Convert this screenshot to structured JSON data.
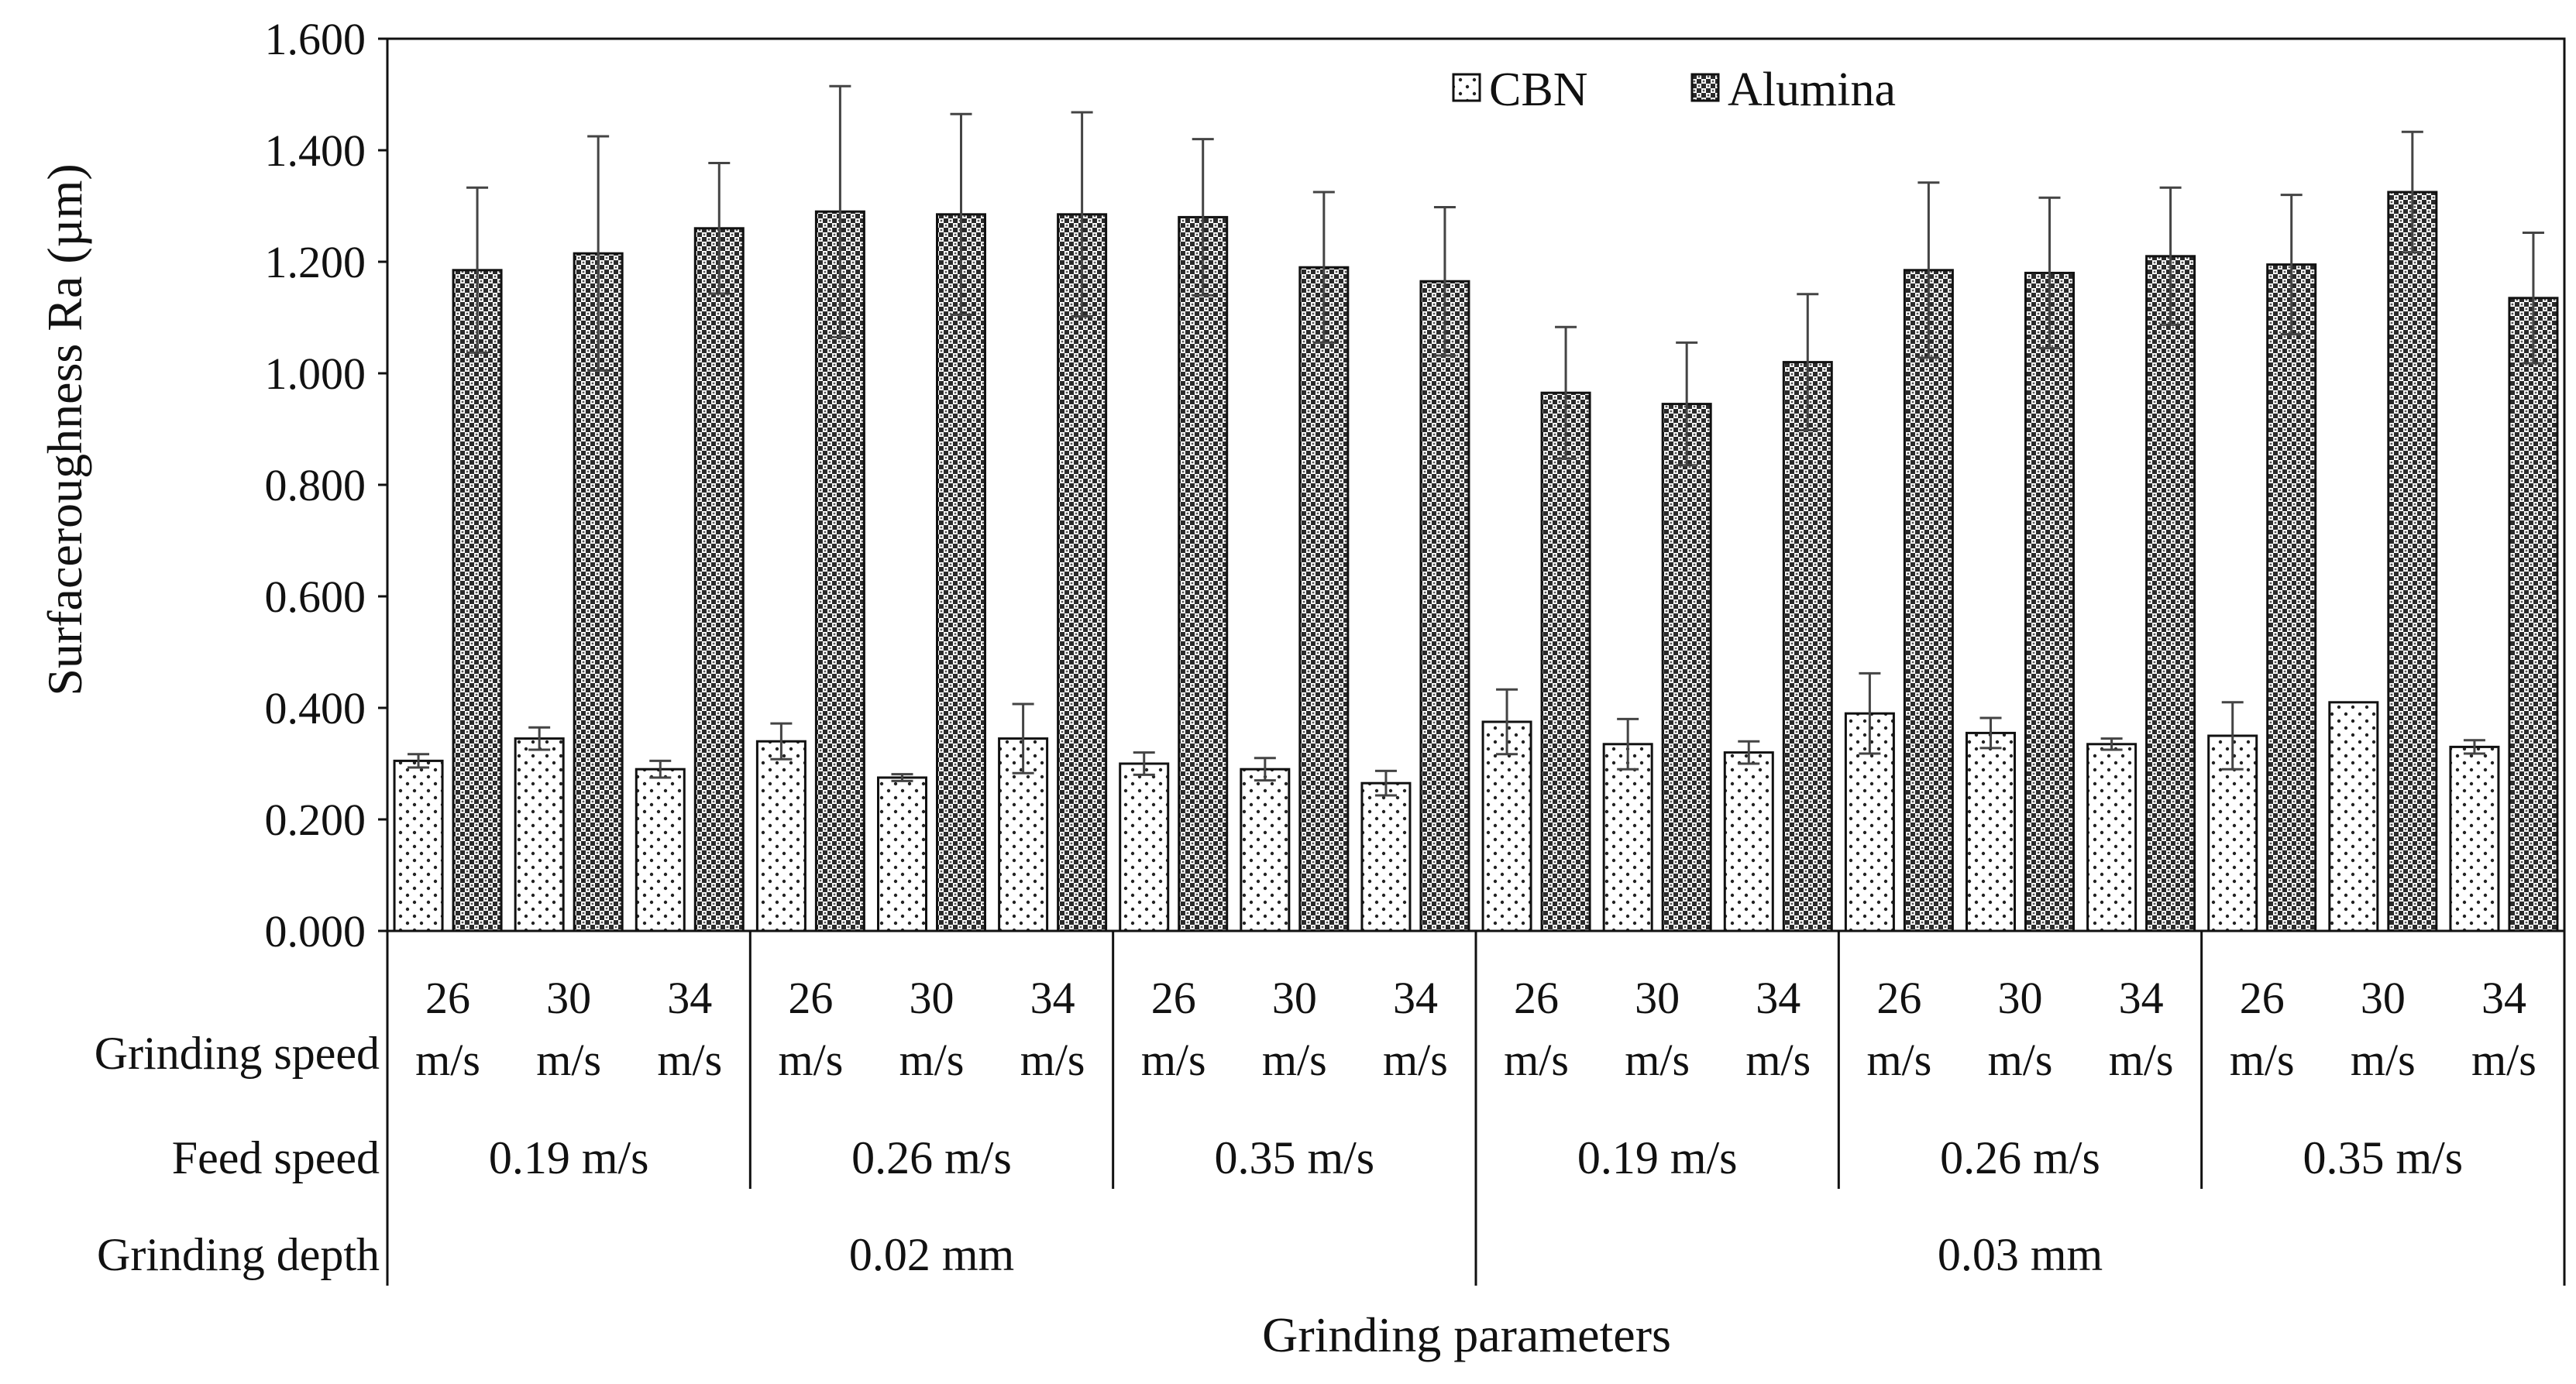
{
  "chart_data": {
    "type": "bar",
    "ylabel": "Surfaceroughness Ra (µm)",
    "xlabel": "Grinding parameters",
    "ylim": [
      0,
      1.6
    ],
    "yticks": [
      "0.000",
      "0.200",
      "0.400",
      "0.600",
      "0.800",
      "1.000",
      "1.200",
      "1.400",
      "1.600"
    ],
    "legend": [
      "CBN",
      "Alumina"
    ],
    "legend_position": "top-right",
    "categories": [
      {
        "speed": "26",
        "unit": "m/s"
      },
      {
        "speed": "30",
        "unit": "m/s"
      },
      {
        "speed": "34",
        "unit": "m/s"
      },
      {
        "speed": "26",
        "unit": "m/s"
      },
      {
        "speed": "30",
        "unit": "m/s"
      },
      {
        "speed": "34",
        "unit": "m/s"
      },
      {
        "speed": "26",
        "unit": "m/s"
      },
      {
        "speed": "30",
        "unit": "m/s"
      },
      {
        "speed": "34",
        "unit": "m/s"
      },
      {
        "speed": "26",
        "unit": "m/s"
      },
      {
        "speed": "30",
        "unit": "m/s"
      },
      {
        "speed": "34",
        "unit": "m/s"
      },
      {
        "speed": "26",
        "unit": "m/s"
      },
      {
        "speed": "30",
        "unit": "m/s"
      },
      {
        "speed": "34",
        "unit": "m/s"
      },
      {
        "speed": "26",
        "unit": "m/s"
      },
      {
        "speed": "30",
        "unit": "m/s"
      },
      {
        "speed": "34",
        "unit": "m/s"
      }
    ],
    "series": [
      {
        "name": "CBN",
        "values": [
          0.305,
          0.345,
          0.29,
          0.34,
          0.275,
          0.345,
          0.3,
          0.29,
          0.265,
          0.375,
          0.335,
          0.32,
          0.39,
          0.355,
          0.335,
          0.35,
          0.41,
          0.33
        ],
        "errors": [
          0.012,
          0.02,
          0.015,
          0.032,
          0.006,
          0.062,
          0.02,
          0.02,
          0.022,
          0.058,
          0.045,
          0.02,
          0.072,
          0.027,
          0.01,
          0.06,
          0.0,
          0.012
        ]
      },
      {
        "name": "Alumina",
        "values": [
          1.185,
          1.215,
          1.26,
          1.29,
          1.285,
          1.285,
          1.28,
          1.19,
          1.165,
          0.965,
          0.945,
          1.02,
          1.185,
          1.18,
          1.21,
          1.195,
          1.325,
          1.135
        ],
        "errors": [
          0.148,
          0.21,
          0.117,
          0.225,
          0.18,
          0.183,
          0.14,
          0.135,
          0.133,
          0.118,
          0.11,
          0.122,
          0.157,
          0.135,
          0.123,
          0.125,
          0.108,
          0.117
        ]
      }
    ],
    "parameter_rows": {
      "grinding_speed_label": "Grinding speed",
      "feed_speed_label": "Feed speed",
      "grinding_depth_label": "Grinding depth",
      "feed_speeds": [
        "0.19 m/s",
        "0.26 m/s",
        "0.35 m/s",
        "0.19 m/s",
        "0.26 m/s",
        "0.35 m/s"
      ],
      "grinding_depths": [
        "0.02 mm",
        "0.03 mm"
      ]
    }
  }
}
